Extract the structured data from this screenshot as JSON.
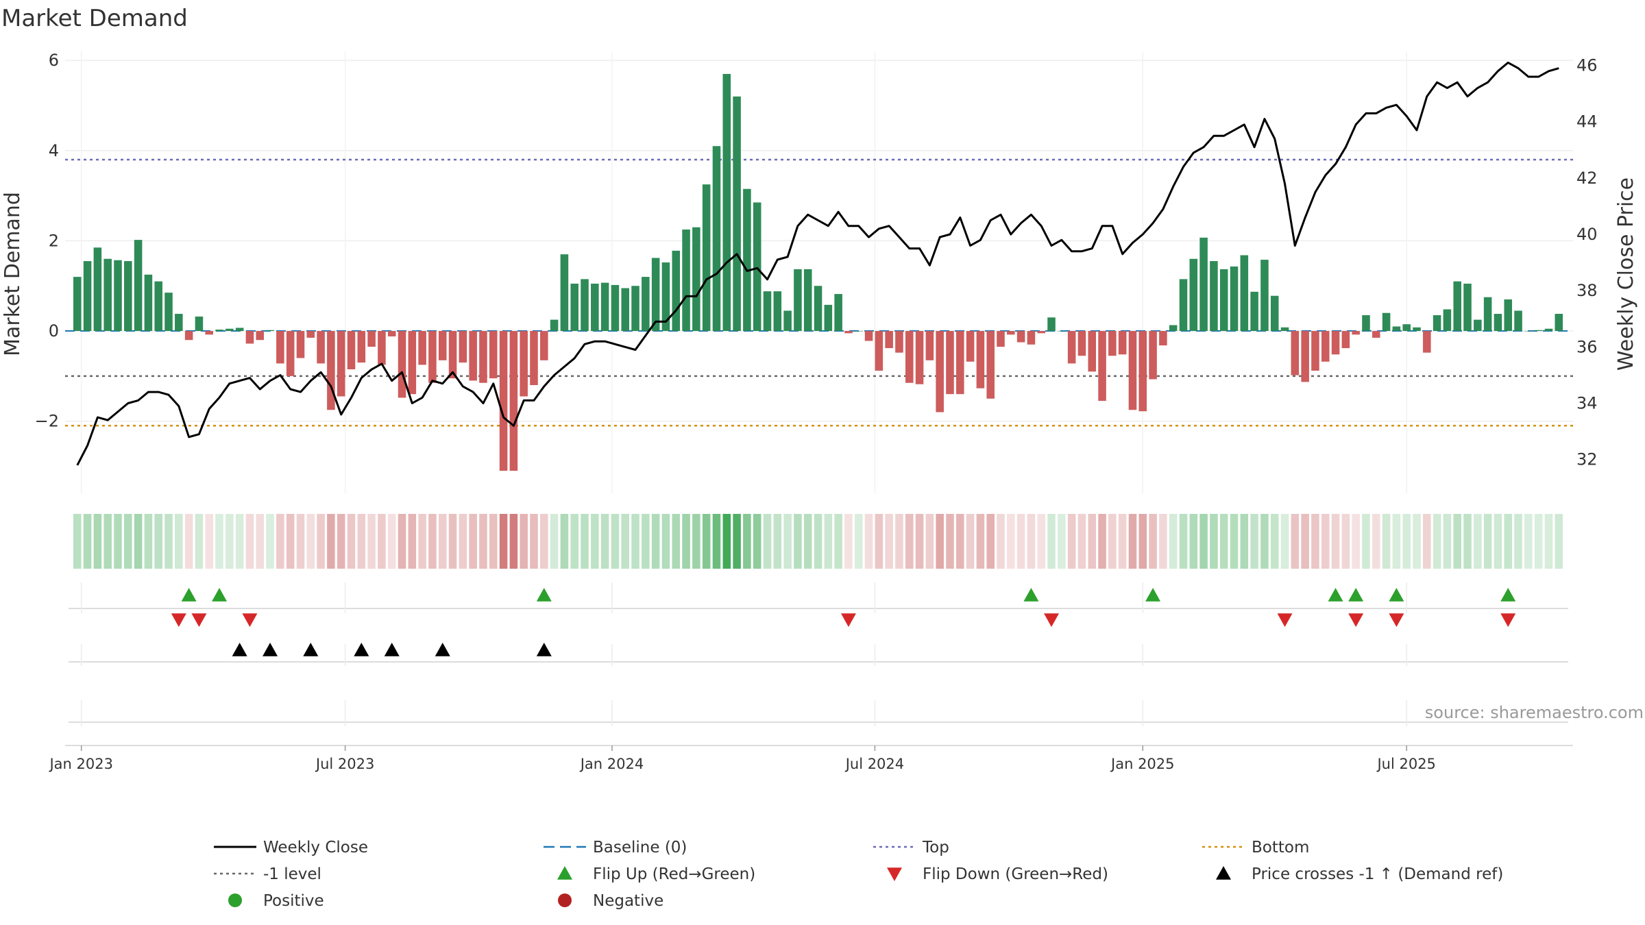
{
  "title": "Market Demand",
  "source": "source: sharemaestro.com",
  "colors": {
    "positive": "#2e8b57",
    "negative": "#cd5c5c",
    "line": "#000000",
    "top": "#6a6ab8",
    "bottom": "#d4900a",
    "minus1": "#666666",
    "baseline": "#1f77b4",
    "flip_up": "#2ca02c",
    "flip_down": "#d62728",
    "cross": "#000000",
    "legend_pos": "#2ca02c",
    "legend_neg": "#b22222"
  },
  "chart_data": {
    "type": "bar+line",
    "title": "Market Demand",
    "ylabel_left": "Market Demand",
    "ylabel_right": "Weekly Close Price",
    "ylim_left": [
      -3.6,
      6.2
    ],
    "ylim_right": [
      30.8,
      46.5
    ],
    "left_ticks": [
      "−2",
      "0",
      "2",
      "4",
      "6"
    ],
    "left_tick_values": [
      -2,
      0,
      2,
      4,
      6
    ],
    "right_ticks": [
      "32",
      "34",
      "36",
      "38",
      "40",
      "42",
      "44",
      "46"
    ],
    "right_tick_values": [
      32,
      34,
      36,
      38,
      40,
      42,
      44,
      46
    ],
    "x_ticks": [
      "Jan 2023",
      "Jul 2023",
      "Jan 2024",
      "Jul 2024",
      "Jan 2025",
      "Jul 2025"
    ],
    "x_tick_weeks": [
      0.4,
      26.4,
      52.7,
      78.6,
      105,
      131
    ],
    "start_week_offset": -1.2,
    "reference_lines": {
      "top": 3.8,
      "minus_one": -1.0,
      "bottom": -2.1,
      "baseline": 0
    },
    "demand": [
      1.2,
      1.55,
      1.85,
      1.6,
      1.57,
      1.55,
      2.02,
      1.25,
      1.1,
      0.85,
      0.38,
      -0.2,
      0.32,
      -0.08,
      0.03,
      0.05,
      0.07,
      -0.28,
      -0.2,
      0.02,
      -0.72,
      -1.0,
      -0.6,
      -0.15,
      -0.72,
      -1.75,
      -1.45,
      -0.85,
      -0.7,
      -0.35,
      -0.75,
      -0.12,
      -1.48,
      -1.4,
      -0.75,
      -1.15,
      -0.65,
      -1.05,
      -0.7,
      -1.1,
      -1.15,
      -1.05,
      -3.1,
      -3.1,
      -1.45,
      -1.2,
      -0.65,
      0.25,
      1.7,
      1.05,
      1.15,
      1.05,
      1.07,
      1.02,
      0.95,
      1.0,
      1.2,
      1.62,
      1.52,
      1.78,
      2.25,
      2.3,
      3.25,
      4.1,
      5.7,
      5.2,
      3.15,
      2.85,
      0.88,
      0.88,
      0.45,
      1.37,
      1.37,
      1.0,
      0.58,
      0.82,
      -0.05,
      0.0,
      -0.22,
      -0.88,
      -0.38,
      -0.48,
      -1.15,
      -1.18,
      -0.65,
      -1.8,
      -1.4,
      -1.4,
      -0.68,
      -1.27,
      -1.5,
      -0.35,
      -0.08,
      -0.25,
      -0.3,
      -0.05,
      0.3,
      0.0,
      -0.72,
      -0.55,
      -0.9,
      -1.55,
      -0.55,
      -0.52,
      -1.75,
      -1.78,
      -1.07,
      -0.32,
      0.13,
      1.15,
      1.6,
      2.07,
      1.55,
      1.37,
      1.43,
      1.68,
      0.87,
      1.58,
      0.78,
      0.08,
      -0.98,
      -1.13,
      -0.88,
      -0.68,
      -0.52,
      -0.38,
      -0.08,
      0.35,
      -0.15,
      0.4,
      0.1,
      0.15,
      0.08,
      -0.48,
      0.35,
      0.48,
      1.1,
      1.05,
      0.25,
      0.75,
      0.38,
      0.7,
      0.45,
      0.0,
      0.02,
      0.05,
      0.38
    ],
    "close": [
      31.8,
      32.5,
      33.5,
      33.4,
      33.7,
      34.0,
      34.1,
      34.4,
      34.4,
      34.3,
      33.9,
      32.8,
      32.9,
      33.8,
      34.2,
      34.7,
      34.8,
      34.9,
      34.5,
      34.8,
      35.0,
      34.5,
      34.4,
      34.8,
      35.1,
      34.6,
      33.6,
      34.2,
      34.9,
      35.2,
      35.4,
      34.8,
      35.1,
      34.0,
      34.2,
      34.8,
      34.7,
      35.1,
      34.6,
      34.4,
      34.0,
      34.7,
      33.5,
      33.2,
      34.1,
      34.1,
      34.6,
      35.0,
      35.3,
      35.6,
      36.1,
      36.2,
      36.2,
      36.1,
      36.0,
      35.9,
      36.4,
      36.9,
      36.9,
      37.3,
      37.8,
      37.8,
      38.4,
      38.6,
      39.0,
      39.3,
      38.7,
      38.8,
      38.4,
      39.1,
      39.2,
      40.3,
      40.7,
      40.5,
      40.3,
      40.8,
      40.3,
      40.3,
      39.9,
      40.2,
      40.3,
      39.9,
      39.5,
      39.5,
      38.9,
      39.9,
      40.0,
      40.6,
      39.6,
      39.8,
      40.5,
      40.7,
      40.0,
      40.4,
      40.7,
      40.3,
      39.6,
      39.8,
      39.4,
      39.4,
      39.5,
      40.3,
      40.3,
      39.3,
      39.7,
      40.0,
      40.4,
      40.9,
      41.7,
      42.4,
      42.9,
      43.1,
      43.5,
      43.5,
      43.7,
      43.9,
      43.1,
      44.1,
      43.4,
      41.8,
      39.6,
      40.6,
      41.5,
      42.1,
      42.5,
      43.1,
      43.9,
      44.3,
      44.3,
      44.5,
      44.6,
      44.2,
      43.7,
      44.9,
      45.4,
      45.2,
      45.4,
      44.9,
      45.2,
      45.4,
      45.8,
      46.1,
      45.9,
      45.6,
      45.6,
      45.8,
      45.9
    ],
    "flip_up_weeks": [
      11,
      14,
      46,
      94,
      106,
      124,
      126,
      130,
      141
    ],
    "flip_down_weeks": [
      10,
      12,
      17,
      76,
      96,
      119,
      126,
      130,
      141
    ],
    "price_cross_weeks": [
      16,
      19,
      23,
      28,
      31,
      36,
      46
    ],
    "legend": [
      {
        "label": "Weekly Close",
        "icon": "line-solid"
      },
      {
        "label": "Baseline (0)",
        "icon": "line-dashed"
      },
      {
        "label": "Top",
        "icon": "line-dotted"
      },
      {
        "label": "Bottom",
        "icon": "line-dotted"
      },
      {
        "label": "-1 level",
        "icon": "line-dotted"
      },
      {
        "label": "Flip Up (Red→Green)",
        "icon": "triangle-up"
      },
      {
        "label": "Flip Down (Green→Red)",
        "icon": "triangle-down"
      },
      {
        "label": "Price crosses -1 ↑ (Demand ref)",
        "icon": "triangle-up"
      },
      {
        "label": "Positive",
        "icon": "circle"
      },
      {
        "label": "Negative",
        "icon": "circle"
      }
    ]
  }
}
